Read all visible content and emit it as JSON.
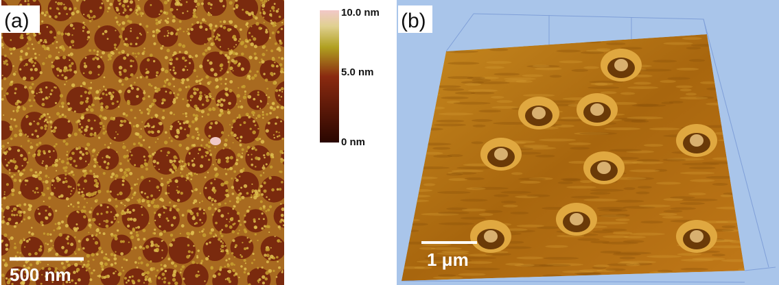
{
  "panel_a": {
    "label": "(a)",
    "scale_bar": "500 nm"
  },
  "colorbar": {
    "labels": [
      "10.0 nm",
      "5.0 nm",
      "0 nm"
    ]
  },
  "panel_b": {
    "label": "(b)",
    "scale_bar": "1 μm"
  }
}
